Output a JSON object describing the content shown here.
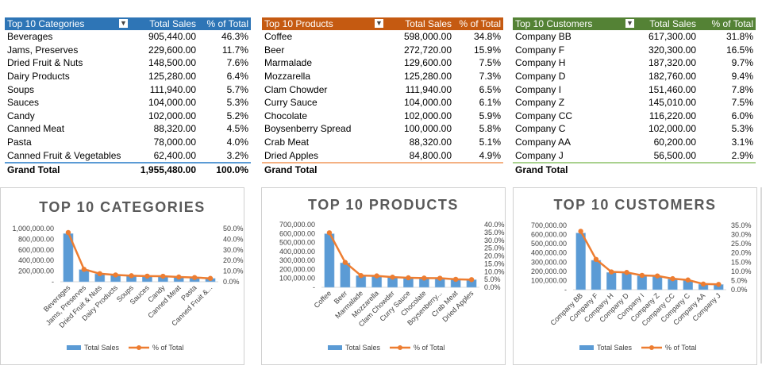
{
  "colors": {
    "categories_header": "#2e75b6",
    "products_header": "#c55a11",
    "customers_header": "#548235",
    "bar_fill": "#5b9bd5",
    "line": "#ed7d31"
  },
  "tables": {
    "categories": {
      "headers": [
        "Top 10 Categories",
        "Total Sales",
        "% of Total"
      ],
      "filter_icon": "filter-icon",
      "rows": [
        [
          "Beverages",
          "905,440.00",
          "46.3%"
        ],
        [
          "Jams, Preserves",
          "229,600.00",
          "11.7%"
        ],
        [
          "Dried Fruit & Nuts",
          "148,500.00",
          "7.6%"
        ],
        [
          "Dairy Products",
          "125,280.00",
          "6.4%"
        ],
        [
          "Soups",
          "111,940.00",
          "5.7%"
        ],
        [
          "Sauces",
          "104,000.00",
          "5.3%"
        ],
        [
          "Candy",
          "102,000.00",
          "5.2%"
        ],
        [
          "Canned Meat",
          "88,320.00",
          "4.5%"
        ],
        [
          "Pasta",
          "78,000.00",
          "4.0%"
        ],
        [
          "Canned Fruit & Vegetables",
          "62,400.00",
          "3.2%"
        ]
      ],
      "grand_total": [
        "Grand Total",
        "1,955,480.00",
        "100.0%"
      ]
    },
    "products": {
      "headers": [
        "Top 10 Products",
        "Total Sales",
        "% of Total"
      ],
      "filter_icon": "filter-icon",
      "rows": [
        [
          "Coffee",
          "598,000.00",
          "34.8%"
        ],
        [
          "Beer",
          "272,720.00",
          "15.9%"
        ],
        [
          "Marmalade",
          "129,600.00",
          "7.5%"
        ],
        [
          "Mozzarella",
          "125,280.00",
          "7.3%"
        ],
        [
          "Clam Chowder",
          "111,940.00",
          "6.5%"
        ],
        [
          "Curry Sauce",
          "104,000.00",
          "6.1%"
        ],
        [
          "Chocolate",
          "102,000.00",
          "5.9%"
        ],
        [
          "Boysenberry Spread",
          "100,000.00",
          "5.8%"
        ],
        [
          "Crab Meat",
          "88,320.00",
          "5.1%"
        ],
        [
          "Dried Apples",
          "84,800.00",
          "4.9%"
        ]
      ],
      "grand_total": [
        "Grand Total",
        "",
        ""
      ]
    },
    "customers": {
      "headers": [
        "Top 10 Customers",
        "Total Sales",
        "% of Total"
      ],
      "filter_icon": "filter-icon",
      "rows": [
        [
          "Company BB",
          "617,300.00",
          "31.8%"
        ],
        [
          "Company F",
          "320,300.00",
          "16.5%"
        ],
        [
          "Company H",
          "187,320.00",
          "9.7%"
        ],
        [
          "Company D",
          "182,760.00",
          "9.4%"
        ],
        [
          "Company I",
          "151,460.00",
          "7.8%"
        ],
        [
          "Company Z",
          "145,010.00",
          "7.5%"
        ],
        [
          "Company CC",
          "116,220.00",
          "6.0%"
        ],
        [
          "Company C",
          "102,000.00",
          "5.3%"
        ],
        [
          "Company AA",
          "60,200.00",
          "3.1%"
        ],
        [
          "Company J",
          "56,500.00",
          "2.9%"
        ]
      ],
      "grand_total": [
        "Grand Total",
        "",
        ""
      ]
    }
  },
  "chart_data": [
    {
      "type": "bar",
      "title": "TOP 10 CATEGORIES",
      "categories": [
        "Beverages",
        "Jams, Preserves",
        "Dried Fruit & Nuts",
        "Dairy Products",
        "Soups",
        "Sauces",
        "Candy",
        "Canned Meat",
        "Pasta",
        "Canned Fruit &..."
      ],
      "series": [
        {
          "name": "Total Sales",
          "values": [
            905440,
            229600,
            148500,
            125280,
            111940,
            104000,
            102000,
            88320,
            78000,
            62400
          ]
        },
        {
          "name": "% of Total",
          "values": [
            46.3,
            11.7,
            7.6,
            6.4,
            5.7,
            5.3,
            5.2,
            4.5,
            4.0,
            3.2
          ],
          "type": "line",
          "axis": "secondary"
        }
      ],
      "ylim": [
        0,
        1000000
      ],
      "y_ticks": [
        "1,000,000.00",
        "800,000.00",
        "600,000.00",
        "400,000.00",
        "200,000.00",
        "-"
      ],
      "y2lim": [
        0,
        50
      ],
      "y2_ticks": [
        "50.0%",
        "40.0%",
        "30.0%",
        "20.0%",
        "10.0%",
        "0.0%"
      ],
      "legend": "bottom"
    },
    {
      "type": "bar",
      "title": "TOP 10 PRODUCTS",
      "categories": [
        "Coffee",
        "Beer",
        "Marmalade",
        "Mozzarella",
        "Clam Chowder",
        "Curry Sauce",
        "Chocolate",
        "Boysenberry...",
        "Crab Meat",
        "Dried Apples"
      ],
      "series": [
        {
          "name": "Total Sales",
          "values": [
            598000,
            272720,
            129600,
            125280,
            111940,
            104000,
            102000,
            100000,
            88320,
            84800
          ]
        },
        {
          "name": "% of Total",
          "values": [
            34.8,
            15.9,
            7.5,
            7.3,
            6.5,
            6.1,
            5.9,
            5.8,
            5.1,
            4.9
          ],
          "type": "line",
          "axis": "secondary"
        }
      ],
      "ylim": [
        0,
        700000
      ],
      "y_ticks": [
        "700,000.00",
        "600,000.00",
        "500,000.00",
        "400,000.00",
        "300,000.00",
        "200,000.00",
        "100,000.00",
        "-"
      ],
      "y2lim": [
        0,
        40
      ],
      "y2_ticks": [
        "40.0%",
        "35.0%",
        "30.0%",
        "25.0%",
        "20.0%",
        "15.0%",
        "10.0%",
        "5.0%",
        "0.0%"
      ],
      "legend": "bottom"
    },
    {
      "type": "bar",
      "title": "TOP 10 CUSTOMERS",
      "categories": [
        "Company BB",
        "Company F",
        "Company H",
        "Company D",
        "Company I",
        "Company Z",
        "Company CC",
        "Company C",
        "Company AA",
        "Company J"
      ],
      "series": [
        {
          "name": "Total Sales",
          "values": [
            617300,
            320300,
            187320,
            182760,
            151460,
            145010,
            116220,
            102000,
            60200,
            56500
          ]
        },
        {
          "name": "% of Total",
          "values": [
            31.8,
            16.5,
            9.7,
            9.4,
            7.8,
            7.5,
            6.0,
            5.3,
            3.1,
            2.9
          ],
          "type": "line",
          "axis": "secondary"
        }
      ],
      "ylim": [
        0,
        700000
      ],
      "y_ticks": [
        "700,000.00",
        "600,000.00",
        "500,000.00",
        "400,000.00",
        "300,000.00",
        "200,000.00",
        "100,000.00",
        "-"
      ],
      "y2lim": [
        0,
        35
      ],
      "y2_ticks": [
        "35.0%",
        "30.0%",
        "25.0%",
        "20.0%",
        "15.0%",
        "10.0%",
        "5.0%",
        "0.0%"
      ],
      "legend": "bottom"
    }
  ]
}
